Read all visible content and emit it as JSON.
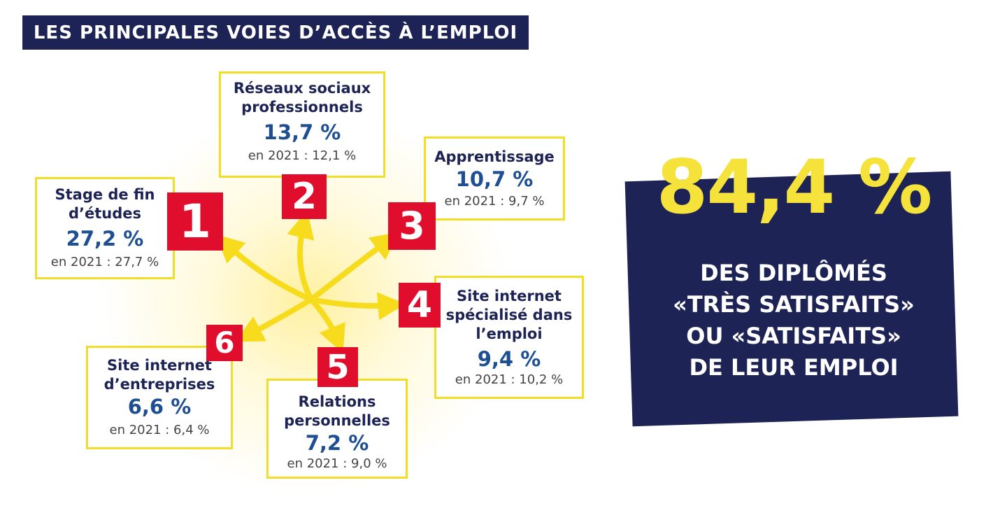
{
  "title": "LES PRINCIPALES VOIES D’ACCÈS À L’EMPLOI",
  "items": [
    {
      "rank": "1",
      "label_lines": [
        "Stage de fin",
        "d’études"
      ],
      "value": "27,2 %",
      "previous": "en 2021 : 27,7 %"
    },
    {
      "rank": "2",
      "label_lines": [
        "Réseaux sociaux",
        "professionnels"
      ],
      "value": "13,7 %",
      "previous": "en 2021 : 12,1 %"
    },
    {
      "rank": "3",
      "label_lines": [
        "Apprentissage"
      ],
      "value": "10,7 %",
      "previous": "en 2021 : 9,7 %"
    },
    {
      "rank": "4",
      "label_lines": [
        "Site internet",
        "spécialisé dans",
        "l’emploi"
      ],
      "value": "9,4 %",
      "previous": "en 2021 : 10,2 %"
    },
    {
      "rank": "5",
      "label_lines": [
        "Relations",
        "personnelles"
      ],
      "value": "7,2 %",
      "previous": "en 2021 : 9,0 %"
    },
    {
      "rank": "6",
      "label_lines": [
        "Site internet",
        "d’entreprises"
      ],
      "value": "6,6 %",
      "previous": "en 2021 : 6,4 %"
    }
  ],
  "highlight": {
    "value": "84,4 %",
    "lines": [
      "DES DIPLÔMÉS",
      "«TRÈS SATISFAITS»",
      "OU «SATISFAITS»",
      "DE LEUR EMPLOI"
    ]
  },
  "colors": {
    "navy": "#1d2355",
    "yellow": "#f5e23a",
    "red": "#e10d2d",
    "blue": "#1f4f93",
    "border": "#f2dd28"
  }
}
